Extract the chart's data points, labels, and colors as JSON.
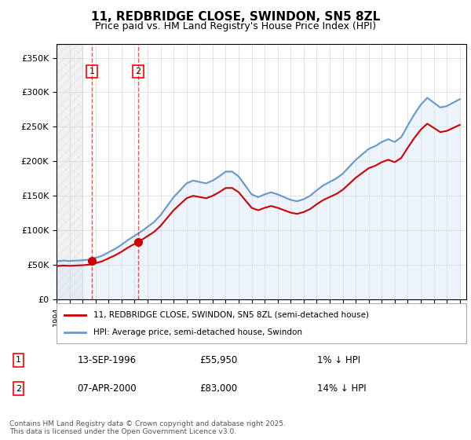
{
  "title": "11, REDBRIDGE CLOSE, SWINDON, SN5 8ZL",
  "subtitle": "Price paid vs. HM Land Registry's House Price Index (HPI)",
  "ylabel": "",
  "xlim_start": 1994.0,
  "xlim_end": 2025.5,
  "ylim": [
    0,
    370000
  ],
  "yticks": [
    0,
    50000,
    100000,
    150000,
    200000,
    250000,
    300000,
    350000
  ],
  "ytick_labels": [
    "£0",
    "£50K",
    "£100K",
    "£150K",
    "£200K",
    "£250K",
    "£300K",
    "£350K"
  ],
  "hatch_region_start": 1994.0,
  "hatch_region_end": 1996.0,
  "marker1_x": 1996.71,
  "marker1_y": 55950,
  "marker1_label": "1",
  "marker1_vline_x": 1996.71,
  "marker2_x": 2000.27,
  "marker2_y": 83000,
  "marker2_label": "2",
  "marker2_vline_x": 2000.27,
  "sale1_date": "13-SEP-1996",
  "sale1_price": "£55,950",
  "sale1_hpi": "1% ↓ HPI",
  "sale2_date": "07-APR-2000",
  "sale2_price": "£83,000",
  "sale2_hpi": "14% ↓ HPI",
  "legend1": "11, REDBRIDGE CLOSE, SWINDON, SN5 8ZL (semi-detached house)",
  "legend2": "HPI: Average price, semi-detached house, Swindon",
  "footnote": "Contains HM Land Registry data © Crown copyright and database right 2025.\nThis data is licensed under the Open Government Licence v3.0.",
  "price_line_color": "#cc0000",
  "hpi_line_color": "#6699cc",
  "hpi_fill_color": "#cce0f5",
  "background_color": "#f0f4fa",
  "plot_bg": "#ffffff"
}
